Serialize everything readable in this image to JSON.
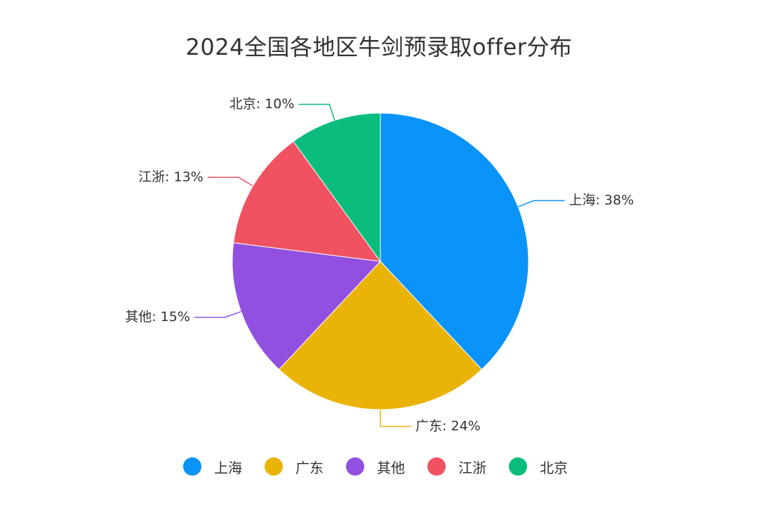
{
  "chart_data": {
    "type": "pie",
    "title": "2024全国各地区牛剑预录取offer分布",
    "slices": [
      {
        "name": "上海",
        "value": 38,
        "label": "上海: 38%",
        "color": "#0a93f8"
      },
      {
        "name": "广东",
        "value": 24,
        "label": "广东: 24%",
        "color": "#eab308"
      },
      {
        "name": "其他",
        "value": 15,
        "label": "其他: 15%",
        "color": "#9250e0"
      },
      {
        "name": "江浙",
        "value": 13,
        "label": "江浙: 13%",
        "color": "#f05262"
      },
      {
        "name": "北京",
        "value": 10,
        "label": "北京: 10%",
        "color": "#0bbd7d"
      }
    ],
    "legend": {
      "position": "bottom"
    }
  }
}
